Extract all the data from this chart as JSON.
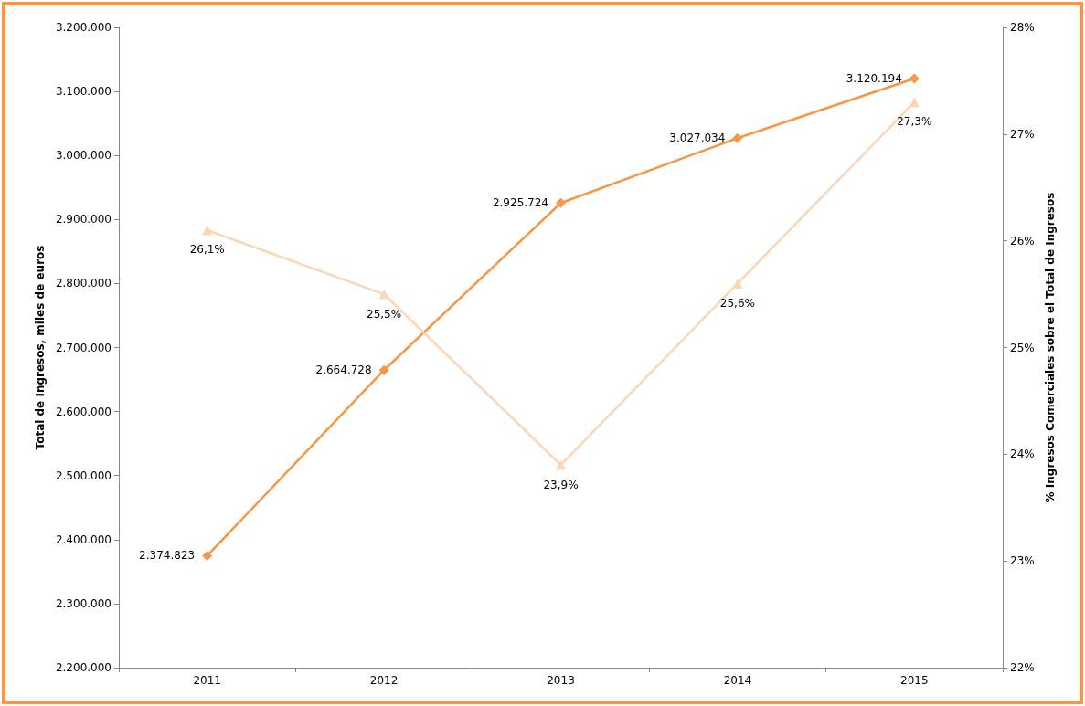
{
  "chart_data": {
    "type": "line",
    "ylabel": "Total de Ingresos, miles de euros",
    "y2label": "% Ingresos Comerciales sobre el Total de Ingresos",
    "categories": [
      "2011",
      "2012",
      "2013",
      "2014",
      "2015"
    ],
    "series": [
      {
        "color": "#f79646",
        "marker": "diamond",
        "values": [
          2374823,
          2664728,
          2925724,
          3027034,
          3120194
        ],
        "value_labels": [
          "2.374.823",
          "2.664.728",
          "2.925.724",
          "3.027.034",
          "3.120.194"
        ]
      },
      {
        "color": "#fcd5b4",
        "marker": "triangle",
        "axis": "y2",
        "values": [
          26.1,
          25.5,
          23.9,
          25.6,
          27.3
        ],
        "value_labels": [
          "26,1%",
          "25,5%",
          "23,9%",
          "25,6%",
          "27,3%"
        ]
      }
    ],
    "ylim": [
      2200000,
      3200000
    ],
    "yticks": [
      {
        "value": 2200000,
        "label": "2.200.000"
      },
      {
        "value": 2300000,
        "label": "2.300.000"
      },
      {
        "value": 2400000,
        "label": "2.400.000"
      },
      {
        "value": 2500000,
        "label": "2.500.000"
      },
      {
        "value": 2600000,
        "label": "2.600.000"
      },
      {
        "value": 2700000,
        "label": "2.700.000"
      },
      {
        "value": 2800000,
        "label": "2.800.000"
      },
      {
        "value": 2900000,
        "label": "2.900.000"
      },
      {
        "value": 3000000,
        "label": "3.000.000"
      },
      {
        "value": 3100000,
        "label": "3.100.000"
      },
      {
        "value": 3200000,
        "label": "3.200.000"
      }
    ],
    "y2lim": [
      22,
      28
    ],
    "y2ticks": [
      {
        "value": 22,
        "label": "22%"
      },
      {
        "value": 23,
        "label": "23%"
      },
      {
        "value": 24,
        "label": "24%"
      },
      {
        "value": 25,
        "label": "25%"
      },
      {
        "value": 26,
        "label": "26%"
      },
      {
        "value": 27,
        "label": "27%"
      },
      {
        "value": 28,
        "label": "28%"
      }
    ],
    "grid": false,
    "line_style": "solid"
  }
}
